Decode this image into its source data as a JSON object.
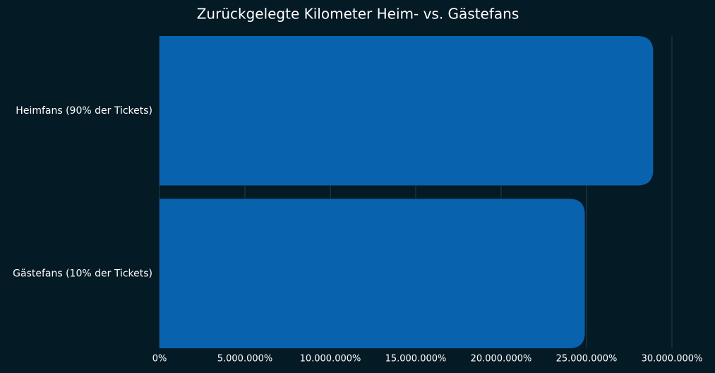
{
  "chart_data": {
    "type": "barh",
    "title": "Zurückgelegte Kilometer Heim- vs. Gästefans",
    "categories": [
      "Heimfans (90% der Tickets)",
      "Gästefans (10% der Tickets)"
    ],
    "values": [
      28900000,
      24900000
    ],
    "color": "#0862ad",
    "xlim": [
      0,
      30000000
    ],
    "xticks": [
      {
        "value": 0,
        "label": "0%"
      },
      {
        "value": 5000000,
        "label": "5.000.000%"
      },
      {
        "value": 10000000,
        "label": "10.000.000%"
      },
      {
        "value": 15000000,
        "label": "15.000.000%"
      },
      {
        "value": 20000000,
        "label": "20.000.000%"
      },
      {
        "value": 25000000,
        "label": "25.000.000%"
      },
      {
        "value": 30000000,
        "label": "30.000.000%"
      }
    ],
    "grid": true
  }
}
